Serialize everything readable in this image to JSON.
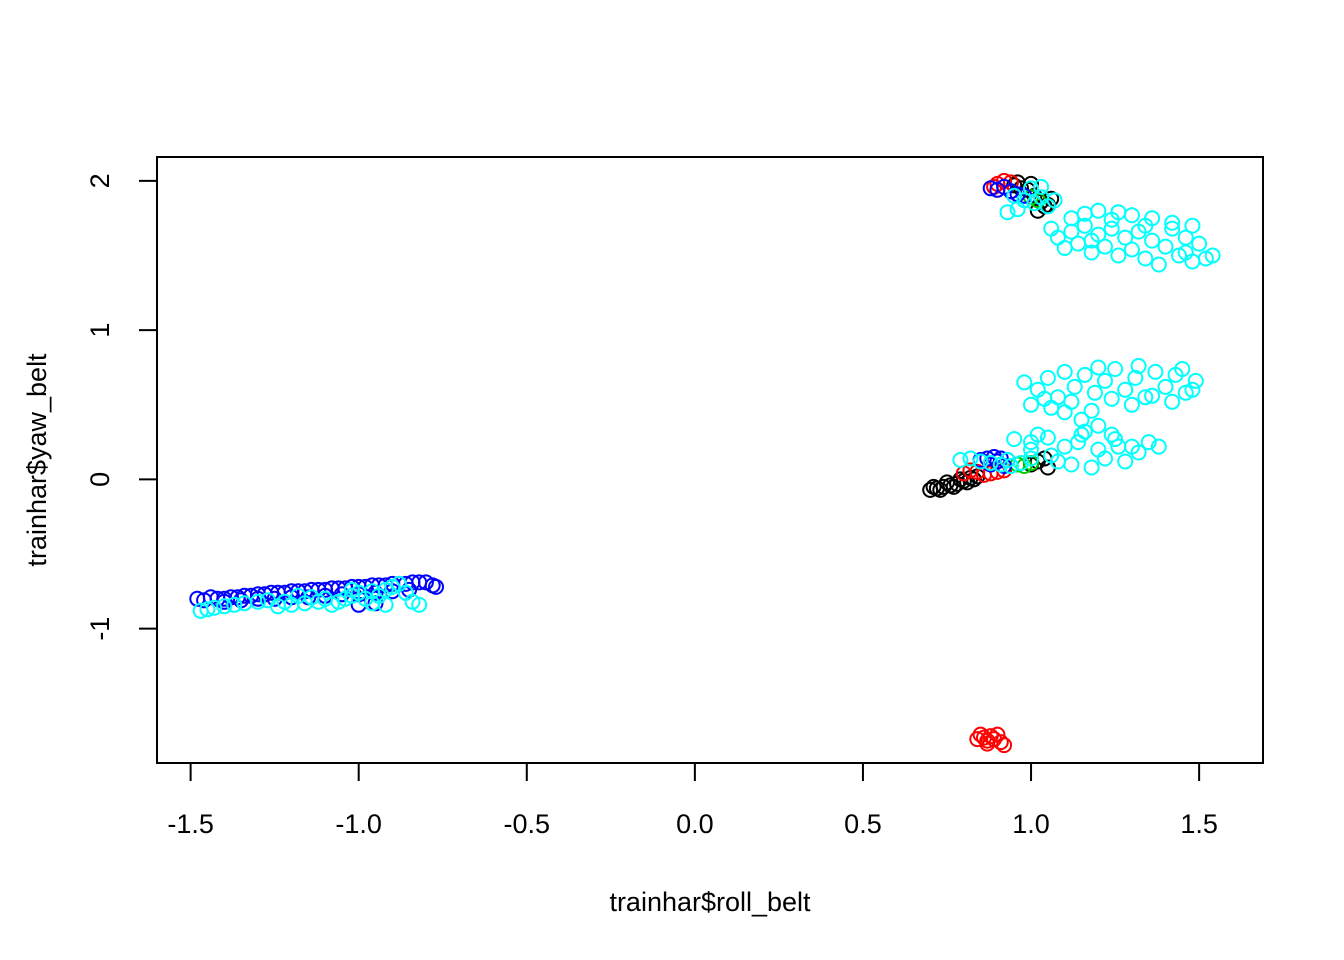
{
  "chart_data": {
    "type": "scatter",
    "title": "",
    "xlabel": "trainhar$roll_belt",
    "ylabel": "trainhar$yaw_belt",
    "xlim": [
      -1.6,
      1.69
    ],
    "ylim": [
      -1.9,
      2.16
    ],
    "xticks": [
      -1.5,
      -1.0,
      -0.5,
      0.0,
      0.5,
      1.0,
      1.5
    ],
    "xtick_labels": [
      "-1.5",
      "-1.0",
      "-0.5",
      "0.0",
      "0.5",
      "1.0",
      "1.5"
    ],
    "yticks": [
      -1,
      0,
      1,
      2
    ],
    "ytick_labels": [
      "-1",
      "0",
      "1",
      "2"
    ],
    "grid": false,
    "legend": "none",
    "marker": "open-circle",
    "series": [
      {
        "color": "#000000",
        "points": [
          [
            0.7,
            -0.07
          ],
          [
            0.72,
            -0.06
          ],
          [
            0.74,
            -0.05
          ],
          [
            0.76,
            -0.04
          ],
          [
            0.78,
            -0.03
          ],
          [
            0.8,
            -0.01
          ],
          [
            0.82,
            0.01
          ],
          [
            0.84,
            0.02
          ],
          [
            0.71,
            -0.05
          ],
          [
            0.73,
            -0.07
          ],
          [
            0.75,
            -0.02
          ],
          [
            0.77,
            -0.05
          ],
          [
            0.79,
            0.0
          ],
          [
            0.81,
            -0.02
          ],
          [
            0.83,
            0.0
          ],
          [
            1.0,
            0.1
          ],
          [
            1.02,
            0.12
          ],
          [
            1.04,
            0.14
          ],
          [
            1.05,
            0.08
          ],
          [
            0.95,
            1.97
          ],
          [
            0.97,
            1.95
          ],
          [
            0.99,
            1.94
          ],
          [
            1.01,
            1.9
          ],
          [
            1.03,
            1.86
          ],
          [
            1.05,
            1.84
          ],
          [
            1.06,
            1.88
          ],
          [
            0.96,
            1.99
          ],
          [
            1.0,
            1.98
          ],
          [
            1.04,
            1.83
          ],
          [
            1.02,
            1.8
          ]
        ]
      },
      {
        "color": "#ff0000",
        "points": [
          [
            0.85,
            -1.71
          ],
          [
            0.86,
            -1.73
          ],
          [
            0.87,
            -1.75
          ],
          [
            0.88,
            -1.72
          ],
          [
            0.89,
            -1.74
          ],
          [
            0.91,
            -1.76
          ],
          [
            0.92,
            -1.78
          ],
          [
            0.87,
            -1.77
          ],
          [
            0.84,
            -1.74
          ],
          [
            0.9,
            -1.71
          ],
          [
            0.8,
            0.04
          ],
          [
            0.82,
            0.06
          ],
          [
            0.84,
            0.05
          ],
          [
            0.86,
            0.03
          ],
          [
            0.88,
            0.04
          ],
          [
            0.9,
            0.05
          ],
          [
            0.92,
            0.06
          ],
          [
            0.9,
            1.98
          ],
          [
            0.92,
            2.0
          ],
          [
            0.94,
            1.99
          ],
          [
            0.89,
            1.96
          ]
        ]
      },
      {
        "color": "#00cd00",
        "points": [
          [
            0.96,
            0.1
          ],
          [
            0.98,
            0.09
          ],
          [
            1.0,
            0.11
          ],
          [
            1.02,
            1.87
          ],
          [
            1.0,
            1.89
          ]
        ]
      },
      {
        "color": "#0000ff",
        "points": [
          [
            -1.48,
            -0.8
          ],
          [
            -1.46,
            -0.81
          ],
          [
            -1.44,
            -0.79
          ],
          [
            -1.42,
            -0.8
          ],
          [
            -1.4,
            -0.8
          ],
          [
            -1.38,
            -0.79
          ],
          [
            -1.36,
            -0.79
          ],
          [
            -1.34,
            -0.78
          ],
          [
            -1.32,
            -0.78
          ],
          [
            -1.3,
            -0.77
          ],
          [
            -1.28,
            -0.77
          ],
          [
            -1.26,
            -0.76
          ],
          [
            -1.24,
            -0.76
          ],
          [
            -1.22,
            -0.76
          ],
          [
            -1.2,
            -0.75
          ],
          [
            -1.18,
            -0.75
          ],
          [
            -1.16,
            -0.75
          ],
          [
            -1.14,
            -0.74
          ],
          [
            -1.12,
            -0.74
          ],
          [
            -1.1,
            -0.74
          ],
          [
            -1.08,
            -0.73
          ],
          [
            -1.06,
            -0.73
          ],
          [
            -1.04,
            -0.73
          ],
          [
            -1.02,
            -0.72
          ],
          [
            -1.0,
            -0.72
          ],
          [
            -0.98,
            -0.72
          ],
          [
            -0.96,
            -0.71
          ],
          [
            -0.94,
            -0.71
          ],
          [
            -0.92,
            -0.71
          ],
          [
            -0.9,
            -0.7
          ],
          [
            -0.88,
            -0.7
          ],
          [
            -0.86,
            -0.7
          ],
          [
            -0.84,
            -0.69
          ],
          [
            -0.82,
            -0.69
          ],
          [
            -0.8,
            -0.69
          ],
          [
            -0.78,
            -0.71
          ],
          [
            -0.77,
            -0.72
          ],
          [
            -1.4,
            -0.82
          ],
          [
            -1.3,
            -0.8
          ],
          [
            -1.2,
            -0.79
          ],
          [
            -1.1,
            -0.78
          ],
          [
            -1.0,
            -0.77
          ],
          [
            -0.9,
            -0.75
          ],
          [
            -1.35,
            -0.81
          ],
          [
            -1.25,
            -0.8
          ],
          [
            -1.15,
            -0.79
          ],
          [
            -1.05,
            -0.77
          ],
          [
            -0.95,
            -0.76
          ],
          [
            -0.85,
            -0.74
          ],
          [
            -1.0,
            -0.84
          ],
          [
            -0.95,
            -0.83
          ],
          [
            0.85,
            0.13
          ],
          [
            0.87,
            0.14
          ],
          [
            0.89,
            0.15
          ],
          [
            0.91,
            0.14
          ],
          [
            0.93,
            0.13
          ],
          [
            0.88,
            0.1
          ],
          [
            0.92,
            0.09
          ],
          [
            0.9,
            0.12
          ],
          [
            0.88,
            1.95
          ],
          [
            0.9,
            1.94
          ],
          [
            0.92,
            1.96
          ],
          [
            0.94,
            1.93
          ],
          [
            0.96,
            1.91
          ],
          [
            0.98,
            1.9
          ]
        ]
      },
      {
        "color": "#00ffff",
        "points": [
          [
            -1.47,
            -0.88
          ],
          [
            -1.45,
            -0.87
          ],
          [
            -1.43,
            -0.86
          ],
          [
            -1.4,
            -0.85
          ],
          [
            -1.37,
            -0.84
          ],
          [
            -1.34,
            -0.83
          ],
          [
            -1.3,
            -0.82
          ],
          [
            -1.27,
            -0.81
          ],
          [
            -1.24,
            -0.85
          ],
          [
            -1.2,
            -0.84
          ],
          [
            -1.16,
            -0.83
          ],
          [
            -1.12,
            -0.82
          ],
          [
            -1.1,
            -0.8
          ],
          [
            -1.08,
            -0.84
          ],
          [
            -1.06,
            -0.82
          ],
          [
            -1.04,
            -0.8
          ],
          [
            -1.02,
            -0.78
          ],
          [
            -1.0,
            -0.76
          ],
          [
            -0.98,
            -0.8
          ],
          [
            -0.96,
            -0.83
          ],
          [
            -0.94,
            -0.78
          ],
          [
            -0.92,
            -0.74
          ],
          [
            -0.9,
            -0.72
          ],
          [
            -0.88,
            -0.7
          ],
          [
            -0.86,
            -0.76
          ],
          [
            -0.84,
            -0.82
          ],
          [
            -0.82,
            -0.84
          ],
          [
            -1.14,
            -0.79
          ],
          [
            -1.18,
            -0.78
          ],
          [
            -1.22,
            -0.82
          ],
          [
            -0.92,
            -0.84
          ],
          [
            -0.96,
            -0.75
          ],
          [
            -1.02,
            -0.74
          ],
          [
            0.79,
            0.13
          ],
          [
            0.82,
            0.14
          ],
          [
            0.85,
            0.12
          ],
          [
            0.88,
            0.11
          ],
          [
            0.91,
            0.1
          ],
          [
            0.94,
            0.09
          ],
          [
            0.97,
            0.11
          ],
          [
            1.0,
            0.14
          ],
          [
            0.93,
            0.13
          ],
          [
            0.95,
            0.27
          ],
          [
            1.0,
            0.25
          ],
          [
            1.05,
            0.28
          ],
          [
            1.1,
            0.22
          ],
          [
            1.15,
            0.3
          ],
          [
            1.2,
            0.2
          ],
          [
            1.25,
            0.27
          ],
          [
            1.3,
            0.22
          ],
          [
            1.35,
            0.25
          ],
          [
            1.08,
            0.12
          ],
          [
            1.12,
            0.1
          ],
          [
            1.18,
            0.08
          ],
          [
            1.22,
            0.14
          ],
          [
            1.28,
            0.12
          ],
          [
            1.32,
            0.18
          ],
          [
            1.38,
            0.22
          ],
          [
            1.16,
            0.32
          ],
          [
            1.2,
            0.36
          ],
          [
            1.24,
            0.3
          ],
          [
            1.14,
            0.25
          ],
          [
            1.26,
            0.22
          ],
          [
            1.0,
            0.2
          ],
          [
            1.06,
            0.16
          ],
          [
            1.02,
            0.3
          ],
          [
            0.98,
            0.65
          ],
          [
            1.02,
            0.6
          ],
          [
            1.05,
            0.68
          ],
          [
            1.08,
            0.55
          ],
          [
            1.1,
            0.72
          ],
          [
            1.13,
            0.62
          ],
          [
            1.16,
            0.7
          ],
          [
            1.19,
            0.58
          ],
          [
            1.22,
            0.66
          ],
          [
            1.25,
            0.74
          ],
          [
            1.28,
            0.6
          ],
          [
            1.31,
            0.68
          ],
          [
            1.34,
            0.55
          ],
          [
            1.37,
            0.72
          ],
          [
            1.4,
            0.62
          ],
          [
            1.43,
            0.7
          ],
          [
            1.46,
            0.58
          ],
          [
            1.49,
            0.66
          ],
          [
            1.0,
            0.5
          ],
          [
            1.06,
            0.48
          ],
          [
            1.12,
            0.52
          ],
          [
            1.18,
            0.46
          ],
          [
            1.24,
            0.54
          ],
          [
            1.3,
            0.5
          ],
          [
            1.36,
            0.56
          ],
          [
            1.42,
            0.52
          ],
          [
            1.48,
            0.6
          ],
          [
            1.15,
            0.4
          ],
          [
            1.1,
            0.45
          ],
          [
            1.04,
            0.54
          ],
          [
            1.2,
            0.75
          ],
          [
            1.32,
            0.76
          ],
          [
            1.45,
            0.74
          ],
          [
            0.95,
            1.9
          ],
          [
            0.98,
            1.87
          ],
          [
            1.01,
            1.85
          ],
          [
            1.03,
            1.89
          ],
          [
            1.05,
            1.83
          ],
          [
            1.07,
            1.87
          ],
          [
            0.93,
            1.79
          ],
          [
            0.96,
            1.81
          ],
          [
            1.0,
            1.95
          ],
          [
            1.03,
            1.96
          ],
          [
            1.06,
            1.68
          ],
          [
            1.08,
            1.62
          ],
          [
            1.1,
            1.55
          ],
          [
            1.12,
            1.66
          ],
          [
            1.14,
            1.58
          ],
          [
            1.16,
            1.7
          ],
          [
            1.18,
            1.52
          ],
          [
            1.2,
            1.64
          ],
          [
            1.22,
            1.56
          ],
          [
            1.24,
            1.68
          ],
          [
            1.26,
            1.5
          ],
          [
            1.28,
            1.62
          ],
          [
            1.3,
            1.54
          ],
          [
            1.32,
            1.66
          ],
          [
            1.34,
            1.48
          ],
          [
            1.36,
            1.6
          ],
          [
            1.38,
            1.44
          ],
          [
            1.4,
            1.56
          ],
          [
            1.42,
            1.68
          ],
          [
            1.44,
            1.5
          ],
          [
            1.46,
            1.62
          ],
          [
            1.48,
            1.46
          ],
          [
            1.5,
            1.58
          ],
          [
            1.52,
            1.48
          ],
          [
            1.54,
            1.5
          ],
          [
            1.12,
            1.75
          ],
          [
            1.16,
            1.78
          ],
          [
            1.2,
            1.8
          ],
          [
            1.26,
            1.79
          ],
          [
            1.3,
            1.77
          ],
          [
            1.36,
            1.75
          ],
          [
            1.42,
            1.72
          ],
          [
            1.48,
            1.7
          ],
          [
            1.18,
            1.6
          ],
          [
            1.24,
            1.74
          ],
          [
            1.34,
            1.7
          ],
          [
            1.46,
            1.52
          ]
        ]
      }
    ]
  }
}
